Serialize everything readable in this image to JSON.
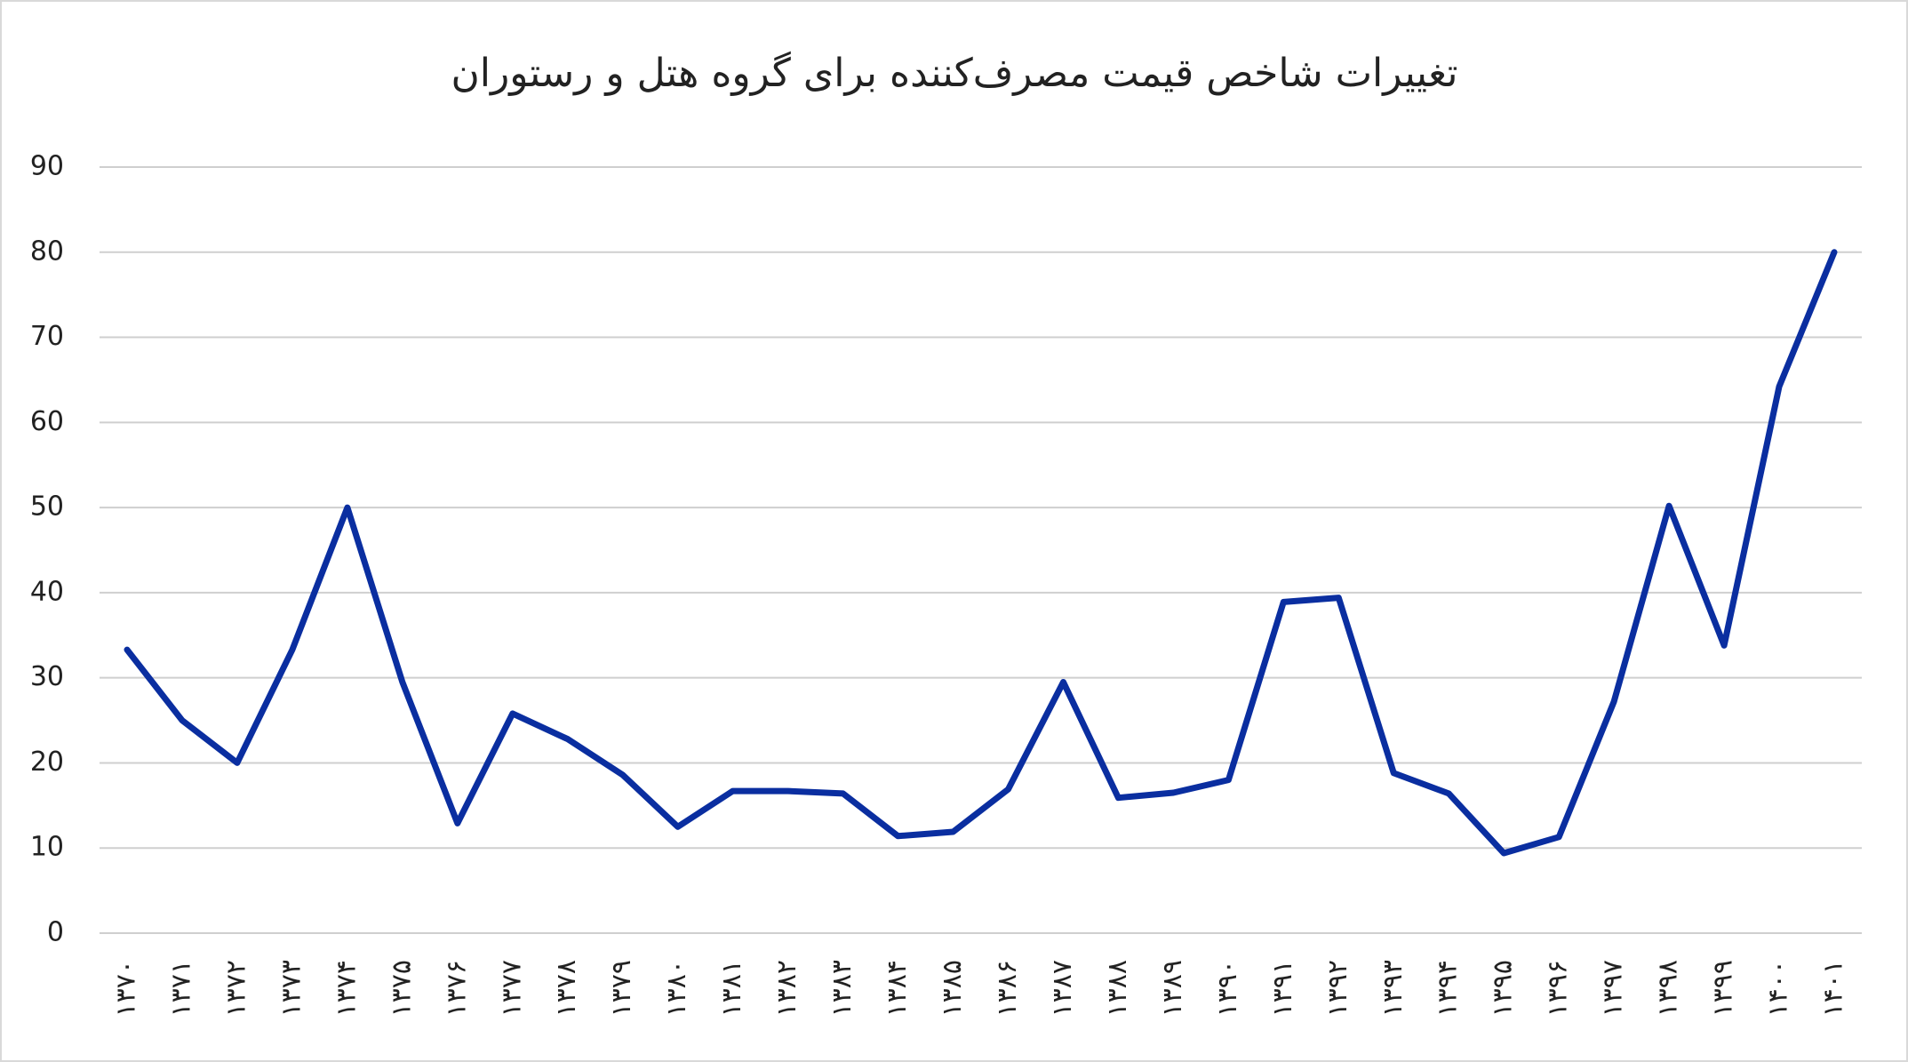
{
  "chart_data": {
    "type": "line",
    "title": "تغییرات شاخص قیمت مصرف‌کننده برای گروه هتل و رستوران",
    "categories": [
      "۱۳۷۰",
      "۱۳۷۱",
      "۱۳۷۲",
      "۱۳۷۳",
      "۱۳۷۴",
      "۱۳۷۵",
      "۱۳۷۶",
      "۱۳۷۷",
      "۱۳۷۸",
      "۱۳۷۹",
      "۱۳۸۰",
      "۱۳۸۱",
      "۱۳۸۲",
      "۱۳۸۳",
      "۱۳۸۴",
      "۱۳۸۵",
      "۱۳۸۶",
      "۱۳۸۷",
      "۱۳۸۸",
      "۱۳۸۹",
      "۱۳۹۰",
      "۱۳۹۱",
      "۱۳۹۲",
      "۱۳۹۳",
      "۱۳۹۴",
      "۱۳۹۵",
      "۱۳۹۶",
      "۱۳۹۷",
      "۱۳۹۸",
      "۱۳۹۹",
      "۱۴۰۰",
      "۱۴۰۱"
    ],
    "values": [
      33.3,
      25,
      20,
      33.3,
      50,
      29.5,
      12.9,
      25.8,
      22.8,
      18.6,
      12.5,
      16.7,
      16.7,
      16.4,
      11.4,
      11.9,
      16.9,
      29.5,
      15.9,
      16.5,
      18,
      38.9,
      39.4,
      18.8,
      16.4,
      9.4,
      11.3,
      27.2,
      50.2,
      33.8,
      64.2,
      80
    ],
    "color": "#0a2ea0",
    "ylim": [
      0,
      90
    ],
    "yticks": [
      0,
      10,
      20,
      30,
      40,
      50,
      60,
      70,
      80,
      90
    ],
    "grid": true
  }
}
